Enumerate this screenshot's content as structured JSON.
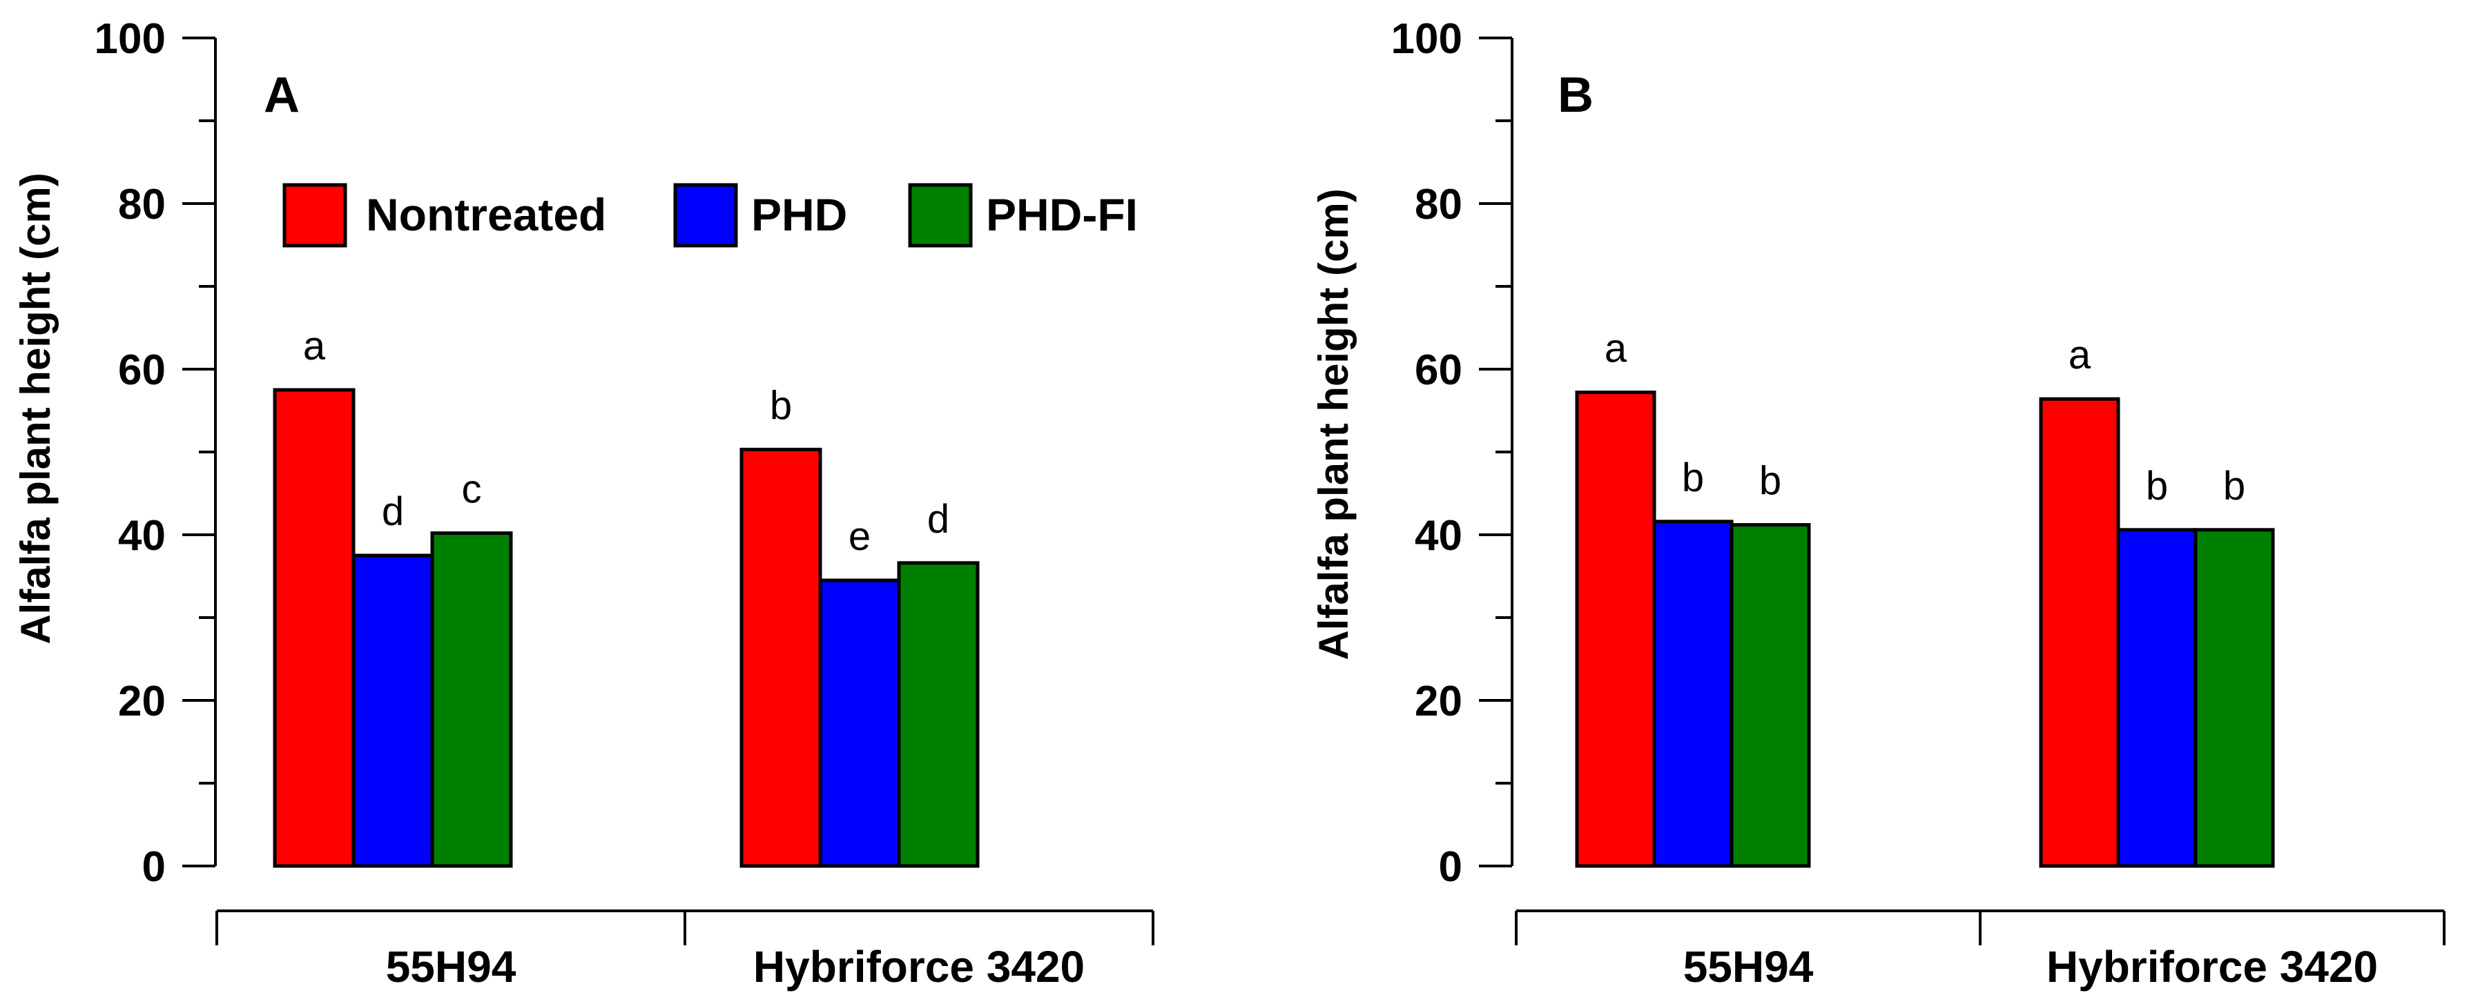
{
  "colors": {
    "Nontreated": "#ff0000",
    "PHD": "#0000ff",
    "PHD-FI": "#008000"
  },
  "chart_data": [
    {
      "type": "bar",
      "panel": "A",
      "ylabel": "Alfalfa plant height (cm)",
      "xlabel": "",
      "ylim": [
        0,
        100
      ],
      "yticks": [
        "0",
        "20",
        "40",
        "60",
        "80",
        "100"
      ],
      "categories": [
        "55H94",
        "Hybriforce 3420"
      ],
      "legend": [
        "Nontreated",
        "PHD",
        "PHD-FI"
      ],
      "legend_position": "top",
      "series": [
        {
          "name": "Nontreated",
          "values": [
            57.5,
            50.3
          ],
          "letters": [
            "a",
            "b"
          ]
        },
        {
          "name": "PHD",
          "values": [
            37.5,
            34.5
          ],
          "letters": [
            "d",
            "e"
          ]
        },
        {
          "name": "PHD-FI",
          "values": [
            40.2,
            36.6
          ],
          "letters": [
            "c",
            "d"
          ]
        }
      ]
    },
    {
      "type": "bar",
      "panel": "B",
      "ylabel": "Alfalfa plant height (cm)",
      "xlabel": "",
      "ylim": [
        0,
        100
      ],
      "yticks": [
        "0",
        "20",
        "40",
        "60",
        "80",
        "100"
      ],
      "categories": [
        "55H94",
        "Hybriforce 3420"
      ],
      "series": [
        {
          "name": "Nontreated",
          "values": [
            57.2,
            56.4
          ],
          "letters": [
            "a",
            "a"
          ]
        },
        {
          "name": "PHD",
          "values": [
            41.6,
            40.6
          ],
          "letters": [
            "b",
            "b"
          ]
        },
        {
          "name": "PHD-FI",
          "values": [
            41.2,
            40.6
          ],
          "letters": [
            "b",
            "b"
          ]
        }
      ]
    }
  ]
}
